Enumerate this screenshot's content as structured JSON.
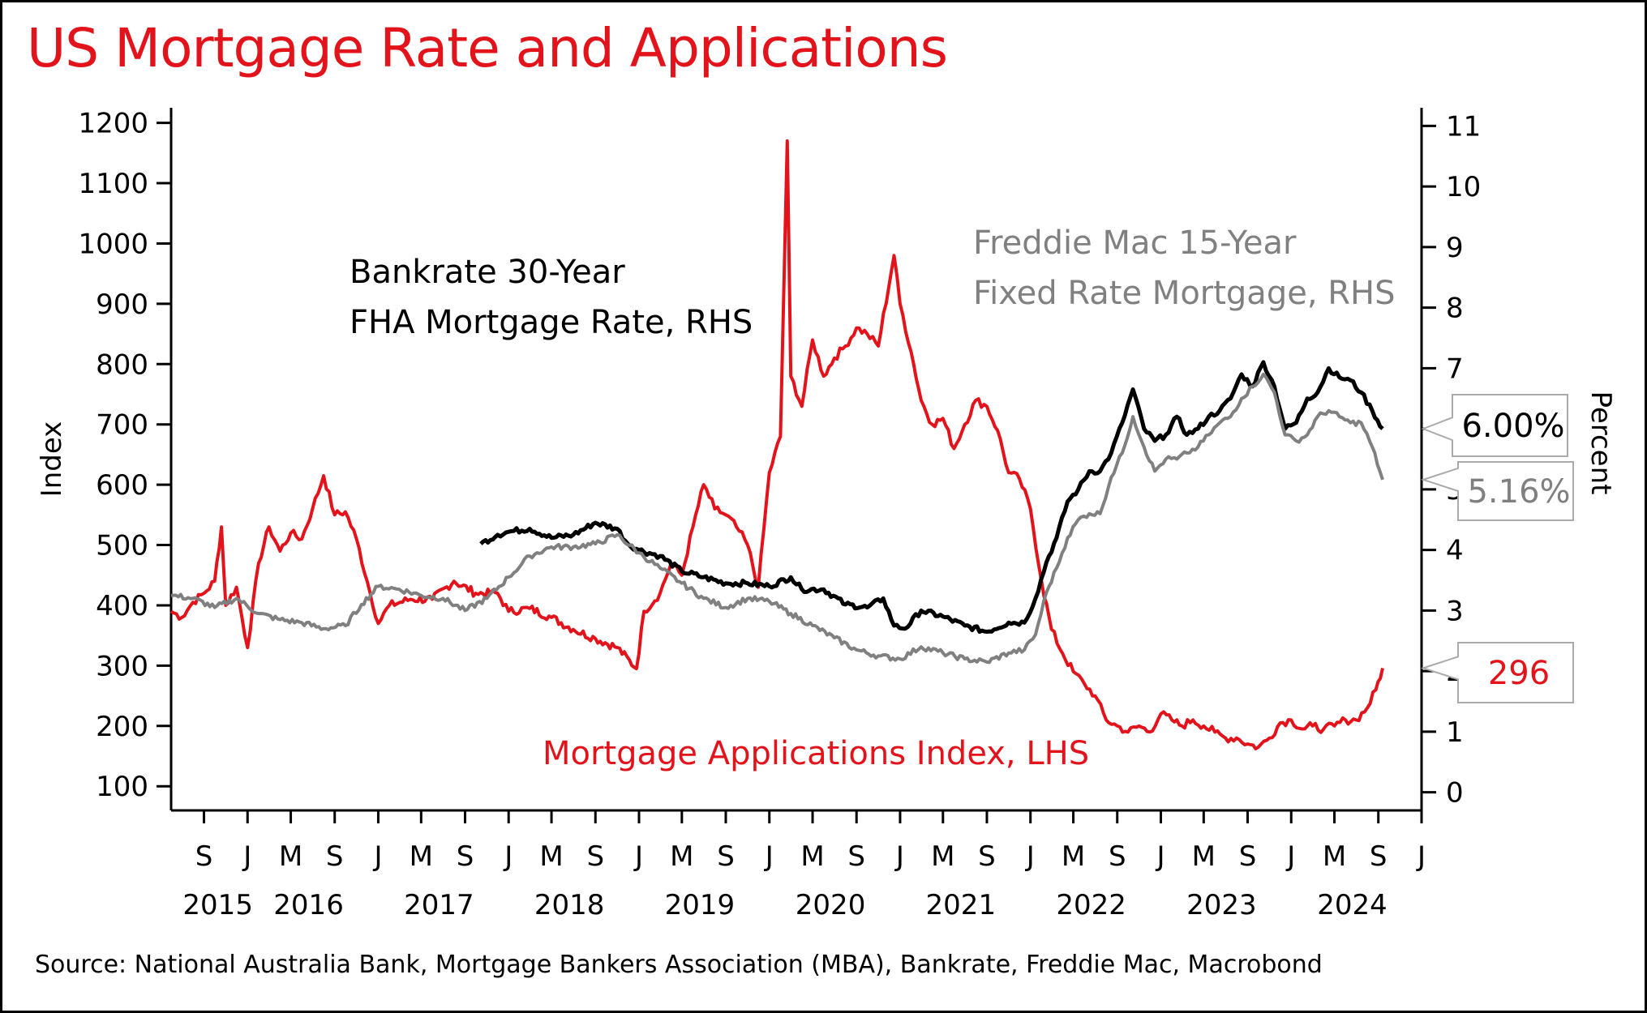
{
  "title": "US Mortgage Rate and Applications",
  "source": "Source: National Australia Bank, Mortgage Bankers Association (MBA), Bankrate, Freddie Mac, Macrobond",
  "colors": {
    "title": "#e3131b",
    "applications": "#e3131b",
    "bankrate": "#000000",
    "freddie": "#808080"
  },
  "chart_data": {
    "type": "line",
    "title": "US Mortgage Rate and Applications",
    "x_range": [
      "2015-06-01",
      "2024-12-31"
    ],
    "left_axis": {
      "label": "Index",
      "range": [
        60,
        1225
      ],
      "ticks": [
        100,
        200,
        300,
        400,
        500,
        600,
        700,
        800,
        900,
        1000,
        1100,
        1200
      ]
    },
    "right_axis": {
      "label": "Percent",
      "range": [
        -0.3,
        11.3
      ],
      "ticks": [
        0,
        1,
        2,
        3,
        4,
        5,
        6,
        7,
        8,
        9,
        10,
        11
      ]
    },
    "x_month_ticks": [
      "S",
      "J",
      "M",
      "S",
      "J",
      "M",
      "S",
      "J",
      "M",
      "S",
      "J",
      "M",
      "S",
      "J",
      "M",
      "S",
      "J",
      "M",
      "S",
      "J",
      "M",
      "S",
      "J",
      "M",
      "S",
      "J",
      "M",
      "S",
      "J"
    ],
    "x_year_labels": [
      "2015",
      "2016",
      "2017",
      "2018",
      "2019",
      "2020",
      "2021",
      "2022",
      "2023",
      "2024"
    ],
    "grid": false,
    "series": [
      {
        "name": "Mortgage Applications Index, LHS",
        "axis": "left",
        "color": "#e3131b",
        "end_label": "296",
        "points": [
          [
            "2015-06-01",
            390
          ],
          [
            "2015-07-01",
            380
          ],
          [
            "2015-08-01",
            405
          ],
          [
            "2015-09-01",
            420
          ],
          [
            "2015-10-01",
            440
          ],
          [
            "2015-10-20",
            530
          ],
          [
            "2015-11-01",
            400
          ],
          [
            "2015-12-01",
            430
          ],
          [
            "2016-01-01",
            330
          ],
          [
            "2016-02-01",
            470
          ],
          [
            "2016-03-01",
            530
          ],
          [
            "2016-04-01",
            490
          ],
          [
            "2016-05-01",
            520
          ],
          [
            "2016-06-01",
            510
          ],
          [
            "2016-07-01",
            560
          ],
          [
            "2016-08-01",
            615
          ],
          [
            "2016-09-01",
            550
          ],
          [
            "2016-10-01",
            555
          ],
          [
            "2016-11-01",
            510
          ],
          [
            "2016-12-01",
            440
          ],
          [
            "2017-01-01",
            370
          ],
          [
            "2017-02-01",
            400
          ],
          [
            "2017-04-01",
            410
          ],
          [
            "2017-06-01",
            410
          ],
          [
            "2017-08-01",
            440
          ],
          [
            "2017-10-01",
            420
          ],
          [
            "2017-12-01",
            420
          ],
          [
            "2018-01-01",
            390
          ],
          [
            "2018-03-01",
            395
          ],
          [
            "2018-05-01",
            380
          ],
          [
            "2018-07-01",
            360
          ],
          [
            "2018-09-01",
            345
          ],
          [
            "2018-11-01",
            330
          ],
          [
            "2018-12-25",
            295
          ],
          [
            "2019-01-15",
            390
          ],
          [
            "2019-03-01",
            420
          ],
          [
            "2019-04-01",
            470
          ],
          [
            "2019-05-01",
            450
          ],
          [
            "2019-06-01",
            530
          ],
          [
            "2019-07-01",
            600
          ],
          [
            "2019-08-01",
            560
          ],
          [
            "2019-09-01",
            550
          ],
          [
            "2019-10-01",
            530
          ],
          [
            "2019-11-01",
            500
          ],
          [
            "2019-12-01",
            430
          ],
          [
            "2020-01-01",
            620
          ],
          [
            "2020-02-01",
            680
          ],
          [
            "2020-02-20",
            1170
          ],
          [
            "2020-03-01",
            780
          ],
          [
            "2020-04-01",
            730
          ],
          [
            "2020-05-01",
            840
          ],
          [
            "2020-06-01",
            780
          ],
          [
            "2020-07-01",
            810
          ],
          [
            "2020-08-01",
            830
          ],
          [
            "2020-09-01",
            860
          ],
          [
            "2020-10-01",
            850
          ],
          [
            "2020-11-01",
            830
          ],
          [
            "2020-12-15",
            980
          ],
          [
            "2021-01-01",
            900
          ],
          [
            "2021-02-01",
            820
          ],
          [
            "2021-03-01",
            740
          ],
          [
            "2021-04-01",
            700
          ],
          [
            "2021-05-01",
            710
          ],
          [
            "2021-06-01",
            660
          ],
          [
            "2021-07-01",
            700
          ],
          [
            "2021-08-01",
            740
          ],
          [
            "2021-09-01",
            730
          ],
          [
            "2021-10-01",
            690
          ],
          [
            "2021-11-01",
            620
          ],
          [
            "2021-12-01",
            610
          ],
          [
            "2022-01-01",
            560
          ],
          [
            "2022-02-01",
            440
          ],
          [
            "2022-03-01",
            360
          ],
          [
            "2022-04-01",
            320
          ],
          [
            "2022-05-01",
            290
          ],
          [
            "2022-06-01",
            270
          ],
          [
            "2022-07-01",
            250
          ],
          [
            "2022-08-01",
            210
          ],
          [
            "2022-09-01",
            200
          ],
          [
            "2022-10-01",
            190
          ],
          [
            "2022-11-01",
            200
          ],
          [
            "2022-12-01",
            190
          ],
          [
            "2023-01-01",
            220
          ],
          [
            "2023-02-01",
            210
          ],
          [
            "2023-03-01",
            200
          ],
          [
            "2023-04-01",
            210
          ],
          [
            "2023-05-01",
            200
          ],
          [
            "2023-06-01",
            190
          ],
          [
            "2023-07-01",
            180
          ],
          [
            "2023-08-01",
            180
          ],
          [
            "2023-09-01",
            170
          ],
          [
            "2023-10-01",
            165
          ],
          [
            "2023-11-01",
            180
          ],
          [
            "2023-12-01",
            205
          ],
          [
            "2024-01-01",
            210
          ],
          [
            "2024-02-01",
            195
          ],
          [
            "2024-03-01",
            200
          ],
          [
            "2024-04-01",
            195
          ],
          [
            "2024-05-01",
            200
          ],
          [
            "2024-06-01",
            210
          ],
          [
            "2024-07-01",
            210
          ],
          [
            "2024-08-01",
            230
          ],
          [
            "2024-08-25",
            260
          ],
          [
            "2024-09-13",
            296
          ]
        ]
      },
      {
        "name": "Bankrate 30-Year FHA Mortgage Rate, RHS",
        "axis": "right",
        "color": "#000000",
        "end_label": "6.00%",
        "points": [
          [
            "2017-10-15",
            4.1
          ],
          [
            "2017-12-01",
            4.25
          ],
          [
            "2018-01-01",
            4.3
          ],
          [
            "2018-03-01",
            4.35
          ],
          [
            "2018-05-01",
            4.2
          ],
          [
            "2018-07-01",
            4.25
          ],
          [
            "2018-09-01",
            4.45
          ],
          [
            "2018-11-01",
            4.35
          ],
          [
            "2018-12-01",
            4.1
          ],
          [
            "2019-01-01",
            4.0
          ],
          [
            "2019-03-01",
            3.9
          ],
          [
            "2019-05-01",
            3.65
          ],
          [
            "2019-07-01",
            3.55
          ],
          [
            "2019-09-01",
            3.45
          ],
          [
            "2019-11-01",
            3.45
          ],
          [
            "2020-01-01",
            3.4
          ],
          [
            "2020-03-01",
            3.55
          ],
          [
            "2020-04-01",
            3.35
          ],
          [
            "2020-06-01",
            3.35
          ],
          [
            "2020-08-01",
            3.1
          ],
          [
            "2020-10-01",
            3.05
          ],
          [
            "2020-11-15",
            3.2
          ],
          [
            "2020-12-15",
            2.75
          ],
          [
            "2021-01-15",
            2.7
          ],
          [
            "2021-03-01",
            3.0
          ],
          [
            "2021-05-01",
            2.9
          ],
          [
            "2021-07-01",
            2.75
          ],
          [
            "2021-09-01",
            2.65
          ],
          [
            "2021-11-01",
            2.8
          ],
          [
            "2021-12-15",
            2.8
          ],
          [
            "2022-01-15",
            3.2
          ],
          [
            "2022-02-15",
            3.8
          ],
          [
            "2022-03-15",
            4.2
          ],
          [
            "2022-04-15",
            4.8
          ],
          [
            "2022-05-15",
            5.0
          ],
          [
            "2022-06-15",
            5.3
          ],
          [
            "2022-07-15",
            5.3
          ],
          [
            "2022-08-15",
            5.6
          ],
          [
            "2022-09-15",
            6.1
          ],
          [
            "2022-10-15",
            6.65
          ],
          [
            "2022-11-15",
            6.0
          ],
          [
            "2022-12-15",
            5.8
          ],
          [
            "2023-01-15",
            5.9
          ],
          [
            "2023-02-15",
            6.2
          ],
          [
            "2023-03-15",
            5.9
          ],
          [
            "2023-04-15",
            6.0
          ],
          [
            "2023-05-15",
            6.2
          ],
          [
            "2023-06-15",
            6.3
          ],
          [
            "2023-07-15",
            6.5
          ],
          [
            "2023-08-15",
            6.9
          ],
          [
            "2023-09-15",
            6.7
          ],
          [
            "2023-10-15",
            7.1
          ],
          [
            "2023-11-15",
            6.7
          ],
          [
            "2023-12-15",
            6.0
          ],
          [
            "2024-01-15",
            6.1
          ],
          [
            "2024-02-15",
            6.5
          ],
          [
            "2024-03-15",
            6.6
          ],
          [
            "2024-04-15",
            7.0
          ],
          [
            "2024-05-15",
            6.85
          ],
          [
            "2024-06-15",
            6.8
          ],
          [
            "2024-07-15",
            6.6
          ],
          [
            "2024-08-15",
            6.3
          ],
          [
            "2024-09-13",
            6.0
          ]
        ]
      },
      {
        "name": "Freddie Mac 15-Year Fixed Rate Mortgage, RHS",
        "axis": "right",
        "color": "#808080",
        "end_label": "5.16%",
        "points": [
          [
            "2015-06-01",
            3.25
          ],
          [
            "2015-08-01",
            3.2
          ],
          [
            "2015-10-01",
            3.05
          ],
          [
            "2015-12-01",
            3.2
          ],
          [
            "2016-02-01",
            2.95
          ],
          [
            "2016-04-01",
            2.85
          ],
          [
            "2016-06-01",
            2.8
          ],
          [
            "2016-08-01",
            2.7
          ],
          [
            "2016-10-01",
            2.75
          ],
          [
            "2016-11-15",
            3.1
          ],
          [
            "2017-01-01",
            3.4
          ],
          [
            "2017-03-01",
            3.35
          ],
          [
            "2017-05-01",
            3.25
          ],
          [
            "2017-07-01",
            3.2
          ],
          [
            "2017-09-01",
            3.0
          ],
          [
            "2017-11-01",
            3.2
          ],
          [
            "2018-01-01",
            3.55
          ],
          [
            "2018-03-01",
            3.9
          ],
          [
            "2018-05-01",
            4.05
          ],
          [
            "2018-07-01",
            4.05
          ],
          [
            "2018-09-01",
            4.1
          ],
          [
            "2018-11-01",
            4.25
          ],
          [
            "2019-01-01",
            3.95
          ],
          [
            "2019-03-01",
            3.7
          ],
          [
            "2019-05-01",
            3.45
          ],
          [
            "2019-07-01",
            3.2
          ],
          [
            "2019-09-01",
            3.05
          ],
          [
            "2019-11-01",
            3.2
          ],
          [
            "2020-01-01",
            3.15
          ],
          [
            "2020-03-01",
            2.95
          ],
          [
            "2020-05-01",
            2.75
          ],
          [
            "2020-07-01",
            2.55
          ],
          [
            "2020-09-01",
            2.35
          ],
          [
            "2020-11-01",
            2.25
          ],
          [
            "2021-01-01",
            2.2
          ],
          [
            "2021-03-01",
            2.4
          ],
          [
            "2021-05-01",
            2.3
          ],
          [
            "2021-07-01",
            2.2
          ],
          [
            "2021-09-01",
            2.15
          ],
          [
            "2021-11-01",
            2.3
          ],
          [
            "2021-12-15",
            2.35
          ],
          [
            "2022-01-15",
            2.6
          ],
          [
            "2022-02-15",
            3.3
          ],
          [
            "2022-03-15",
            3.7
          ],
          [
            "2022-04-15",
            4.2
          ],
          [
            "2022-05-15",
            4.5
          ],
          [
            "2022-06-15",
            4.6
          ],
          [
            "2022-07-15",
            4.6
          ],
          [
            "2022-08-15",
            5.2
          ],
          [
            "2022-09-15",
            5.6
          ],
          [
            "2022-10-15",
            6.2
          ],
          [
            "2022-11-15",
            5.7
          ],
          [
            "2022-12-15",
            5.3
          ],
          [
            "2023-01-15",
            5.5
          ],
          [
            "2023-02-15",
            5.5
          ],
          [
            "2023-03-15",
            5.6
          ],
          [
            "2023-04-15",
            5.7
          ],
          [
            "2023-05-15",
            5.9
          ],
          [
            "2023-06-15",
            6.1
          ],
          [
            "2023-07-15",
            6.2
          ],
          [
            "2023-08-15",
            6.5
          ],
          [
            "2023-09-15",
            6.7
          ],
          [
            "2023-10-15",
            6.9
          ],
          [
            "2023-11-15",
            6.6
          ],
          [
            "2023-12-15",
            5.9
          ],
          [
            "2024-01-15",
            5.8
          ],
          [
            "2024-02-15",
            5.9
          ],
          [
            "2024-03-15",
            6.2
          ],
          [
            "2024-04-15",
            6.3
          ],
          [
            "2024-05-15",
            6.2
          ],
          [
            "2024-06-15",
            6.1
          ],
          [
            "2024-07-15",
            6.1
          ],
          [
            "2024-08-15",
            5.7
          ],
          [
            "2024-09-13",
            5.16
          ]
        ]
      }
    ],
    "annotations": [
      {
        "lines": [
          "Bankrate 30-Year",
          "FHA Mortgage Rate, RHS"
        ],
        "color": "#000000"
      },
      {
        "lines": [
          "Freddie Mac 15-Year",
          "Fixed Rate Mortgage, RHS"
        ],
        "color": "#808080"
      },
      {
        "lines": [
          "Mortgage Applications Index, LHS"
        ],
        "color": "#e3131b"
      }
    ]
  }
}
